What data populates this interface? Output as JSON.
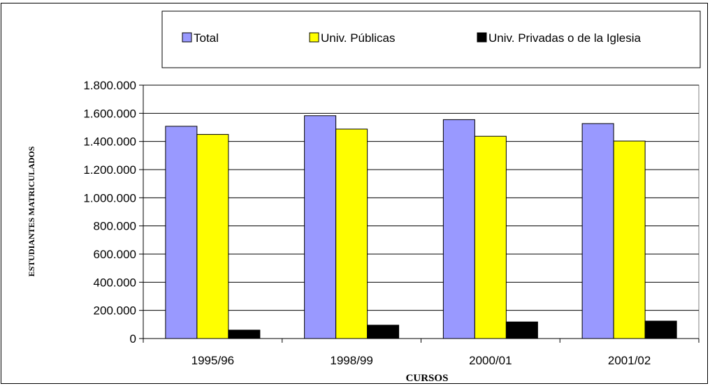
{
  "chart_data": {
    "type": "bar",
    "title": "",
    "xlabel": "CURSOS",
    "ylabel": "ESTUDIANTES MATRICULADOS",
    "categories": [
      "1995/96",
      "1998/99",
      "2000/01",
      "2001/02"
    ],
    "series": [
      {
        "name": "Total",
        "color": "#9999ff",
        "values": [
          1508000,
          1583000,
          1555000,
          1527000
        ]
      },
      {
        "name": "Univ. Públicas",
        "color": "#ffff00",
        "values": [
          1450000,
          1488000,
          1437000,
          1403000
        ]
      },
      {
        "name": "Univ. Privadas o de la Iglesia",
        "color": "#000000",
        "values": [
          60000,
          95000,
          118000,
          124000
        ]
      }
    ],
    "ylim": [
      0,
      1800000
    ],
    "yticks": [
      0,
      200000,
      400000,
      600000,
      800000,
      1000000,
      1200000,
      1400000,
      1600000,
      1800000
    ],
    "ytick_labels": [
      "0",
      "200.000",
      "400.000",
      "600.000",
      "800.000",
      "1.000.000",
      "1.200.000",
      "1.400.000",
      "1.600.000",
      "1.800.000"
    ],
    "grid": true,
    "legend_position": "top"
  }
}
